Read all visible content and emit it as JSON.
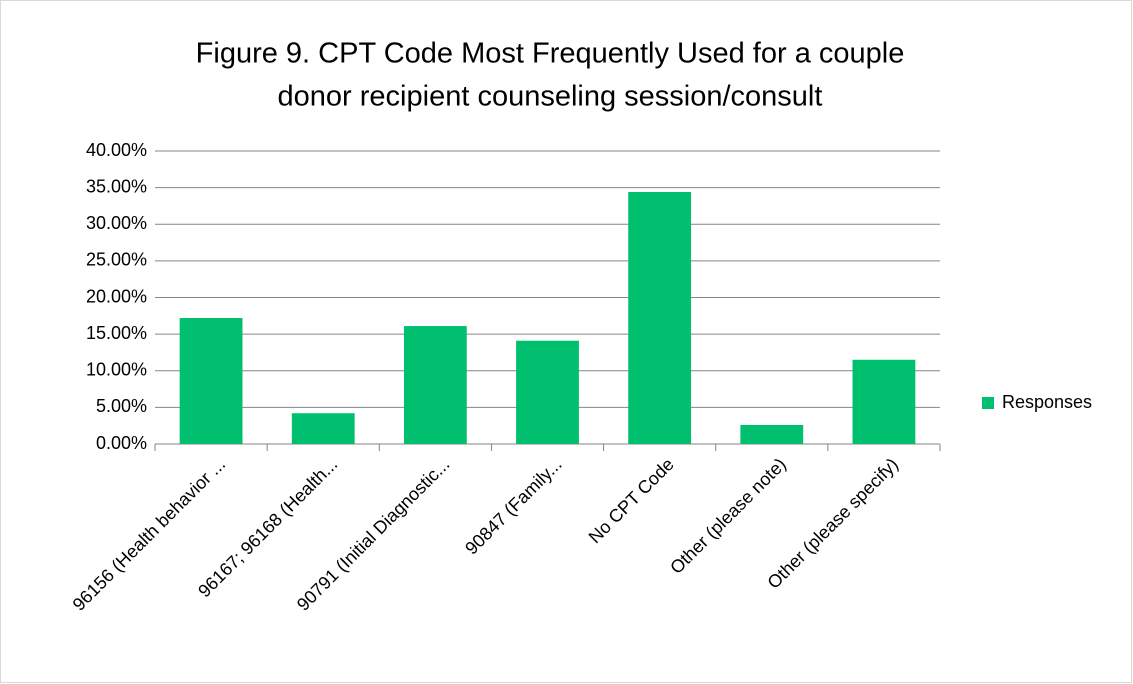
{
  "chart_data": {
    "type": "bar",
    "title": [
      "Figure 9. CPT Code Most Frequently Used for a couple",
      "donor recipient counseling session/consult"
    ],
    "categories": [
      "96156 (Health behavior ...",
      "96167; 96168  (Health...",
      "90791 (Initial Diagnostic...",
      "90847 (Family...",
      "No CPT Code",
      "Other (please note)",
      "Other (please specify)"
    ],
    "series": [
      {
        "name": "Responses",
        "color": "#00bf6f",
        "values": [
          17.2,
          4.2,
          16.1,
          14.1,
          34.4,
          2.6,
          11.5
        ]
      }
    ],
    "ylim": [
      0,
      40
    ],
    "yticks": [
      {
        "value": 0,
        "label": "0.00%"
      },
      {
        "value": 5,
        "label": "5.00%"
      },
      {
        "value": 10,
        "label": "10.00%"
      },
      {
        "value": 15,
        "label": "15.00%"
      },
      {
        "value": 20,
        "label": "20.00%"
      },
      {
        "value": 25,
        "label": "25.00%"
      },
      {
        "value": 30,
        "label": "30.00%"
      },
      {
        "value": 35,
        "label": "35.00%"
      },
      {
        "value": 40,
        "label": "40.00%"
      }
    ],
    "grid": true,
    "legend": "right"
  }
}
